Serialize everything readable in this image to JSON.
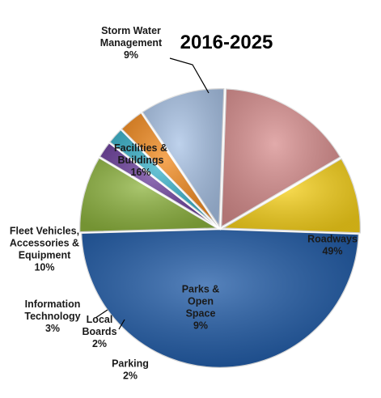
{
  "chart_data": {
    "type": "pie",
    "title": "2016-2025",
    "slices": [
      {
        "key": "roadways",
        "label_lines": [
          "Roadways",
          "49%"
        ],
        "value": 49,
        "color": "#1f5aa6"
      },
      {
        "key": "parks",
        "label_lines": [
          "Parks &",
          "Open",
          "Space",
          "9%"
        ],
        "value": 9,
        "color": "#8db33e"
      },
      {
        "key": "parking",
        "label_lines": [
          "Parking",
          "2%"
        ],
        "value": 2,
        "color": "#6a3d9a"
      },
      {
        "key": "local-boards",
        "label_lines": [
          "Local",
          "Boards",
          "2%"
        ],
        "value": 2,
        "color": "#37b0c8"
      },
      {
        "key": "information-technology",
        "label_lines": [
          "Information",
          "Technology",
          "3%"
        ],
        "value": 3,
        "color": "#f28a1e"
      },
      {
        "key": "fleet-vehicles",
        "label_lines": [
          "Fleet Vehicles,",
          "Accessories &",
          "Equipment",
          "10%"
        ],
        "value": 10,
        "color": "#a9c3e6"
      },
      {
        "key": "facilities",
        "label_lines": [
          "Facilities &",
          "Buildings",
          "16%"
        ],
        "value": 16,
        "color": "#d88e8e"
      },
      {
        "key": "storm-water",
        "label_lines": [
          "Storm Water",
          "Management",
          "9%"
        ],
        "value": 9,
        "color": "#f7d11a"
      }
    ]
  }
}
